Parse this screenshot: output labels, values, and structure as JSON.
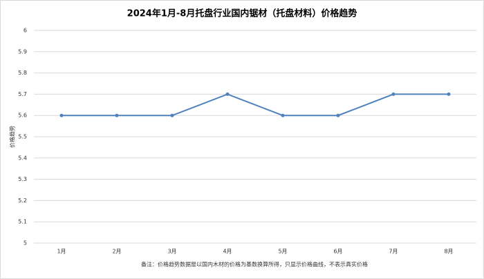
{
  "chart_data": {
    "type": "line",
    "title": "2024年1月-8月托盘行业国内锯材（托盘材料）价格趋势",
    "y_label": "价格趋势",
    "note": "备注：价格趋势数据是以国内木材的价格为基数换算所得，只显示价格曲线，不表示真实价格",
    "categories": [
      "1月",
      "2月",
      "3月",
      "4月",
      "5月",
      "6月",
      "7月",
      "8月"
    ],
    "values": [
      5.6,
      5.6,
      5.6,
      5.7,
      5.6,
      5.6,
      5.7,
      5.7
    ],
    "color": "#4f81bd",
    "ylim": [
      5,
      6
    ],
    "yticks": [
      5,
      5.1,
      5.2,
      5.3,
      5.4,
      5.5,
      5.6,
      5.7,
      5.8,
      5.9,
      6
    ],
    "grid": true
  }
}
